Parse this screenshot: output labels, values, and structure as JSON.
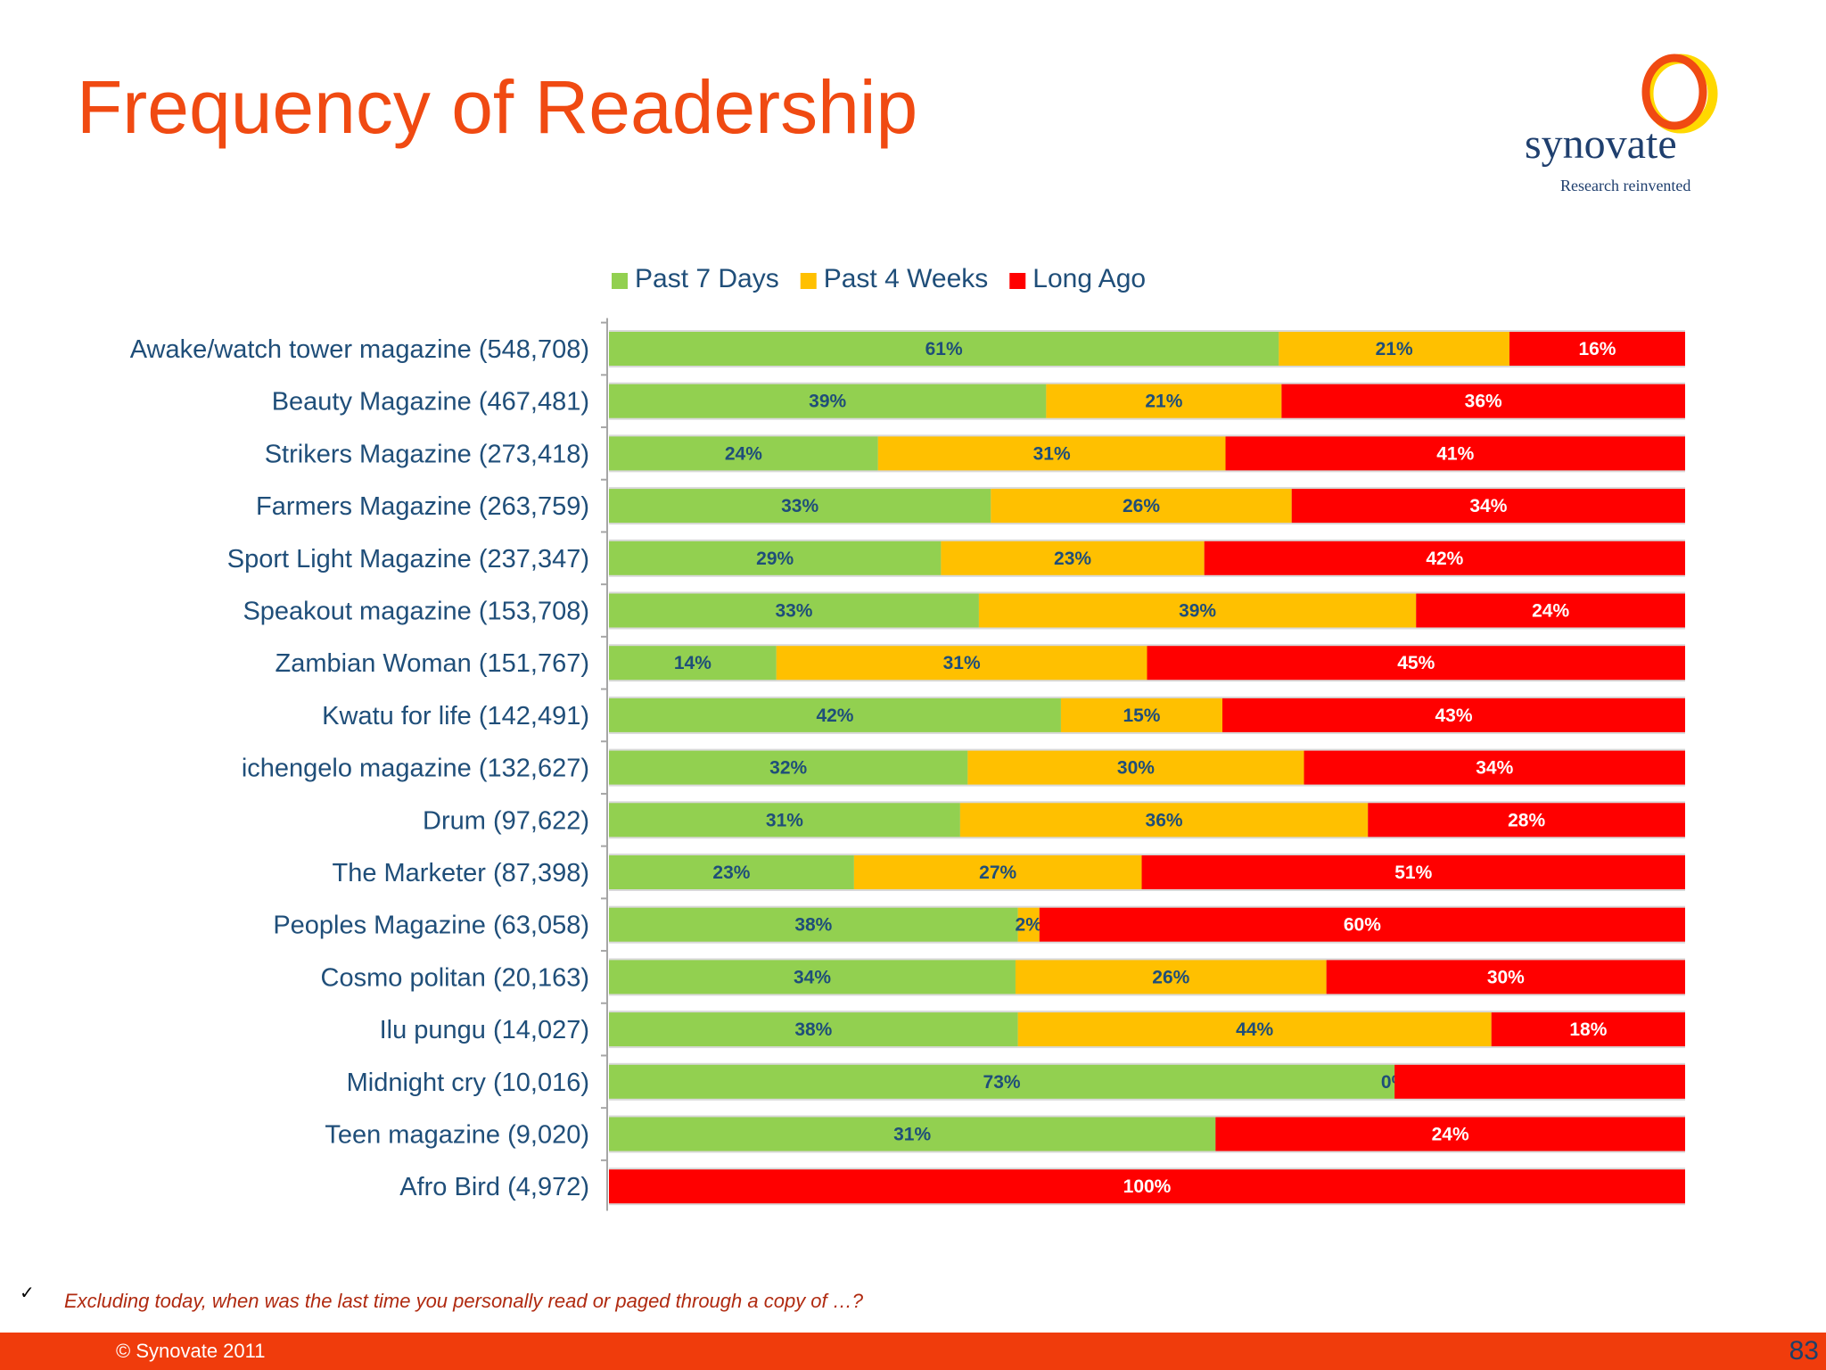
{
  "page": {
    "title": "Frequency of Readership",
    "logo_text": "synovate",
    "logo_tagline": "Research reinvented",
    "footnote_mark": "✓",
    "footnote": "Excluding  today, when was the last time you personally read or paged through a copy of …?",
    "copyright": "© Synovate 2011",
    "page_number": "83"
  },
  "colors": {
    "past_7_days": "#92d050",
    "past_4_weeks": "#ffc000",
    "long_ago": "#ff0000",
    "title": "#f04a12",
    "axis_text": "#1f4e79",
    "footer": "#f03c0c"
  },
  "chart_data": {
    "type": "bar",
    "orientation": "horizontal",
    "stacked": "percent",
    "legend_position": "top",
    "categories": [
      "Awake/watch tower magazine (548,708)",
      "Beauty Magazine (467,481)",
      "Strikers Magazine (273,418)",
      "Farmers Magazine (263,759)",
      "Sport Light Magazine (237,347)",
      "Speakout magazine (153,708)",
      "Zambian Woman (151,767)",
      "Kwatu for life (142,491)",
      "ichengelo magazine (132,627)",
      "Drum (97,622)",
      "The Marketer (87,398)",
      "Peoples Magazine (63,058)",
      "Cosmo politan (20,163)",
      "Ilu pungu (14,027)",
      "Midnight cry (10,016)",
      "Teen magazine (9,020)",
      "Afro Bird (4,972)"
    ],
    "series": [
      {
        "name": "Past 7 Days",
        "color": "#92d050",
        "label_color": "#1f4e79",
        "values": [
          61,
          39,
          24,
          33,
          29,
          33,
          14,
          42,
          32,
          31,
          23,
          38,
          34,
          38,
          73,
          31,
          0
        ]
      },
      {
        "name": "Past 4 Weeks",
        "color": "#ffc000",
        "label_color": "#1f4e79",
        "values": [
          21,
          21,
          31,
          26,
          23,
          39,
          31,
          15,
          30,
          36,
          27,
          2,
          26,
          44,
          0,
          0,
          0
        ]
      },
      {
        "name": "Long Ago",
        "color": "#ff0000",
        "label_color": "#ffffff",
        "values": [
          16,
          36,
          41,
          34,
          42,
          24,
          45,
          43,
          34,
          28,
          51,
          60,
          30,
          18,
          27,
          24,
          100
        ]
      }
    ],
    "labels": [
      [
        "61%",
        "21%",
        "16%"
      ],
      [
        "39%",
        "21%",
        "36%"
      ],
      [
        "24%",
        "31%",
        "41%"
      ],
      [
        "33%",
        "26%",
        "34%"
      ],
      [
        "29%",
        "23%",
        "42%"
      ],
      [
        "33%",
        "39%",
        "24%"
      ],
      [
        "14%",
        "31%",
        "45%"
      ],
      [
        "42%",
        "15%",
        "43%"
      ],
      [
        "32%",
        "30%",
        "34%"
      ],
      [
        "31%",
        "36%",
        "28%"
      ],
      [
        "23%",
        "27%",
        "51%"
      ],
      [
        "38%",
        "2%",
        "60%"
      ],
      [
        "34%",
        "26%",
        "30%"
      ],
      [
        "38%",
        "44%",
        "18%"
      ],
      [
        "73%",
        "0%",
        ""
      ],
      [
        "31%",
        "",
        "24%"
      ],
      [
        "",
        "",
        "100%"
      ]
    ]
  }
}
